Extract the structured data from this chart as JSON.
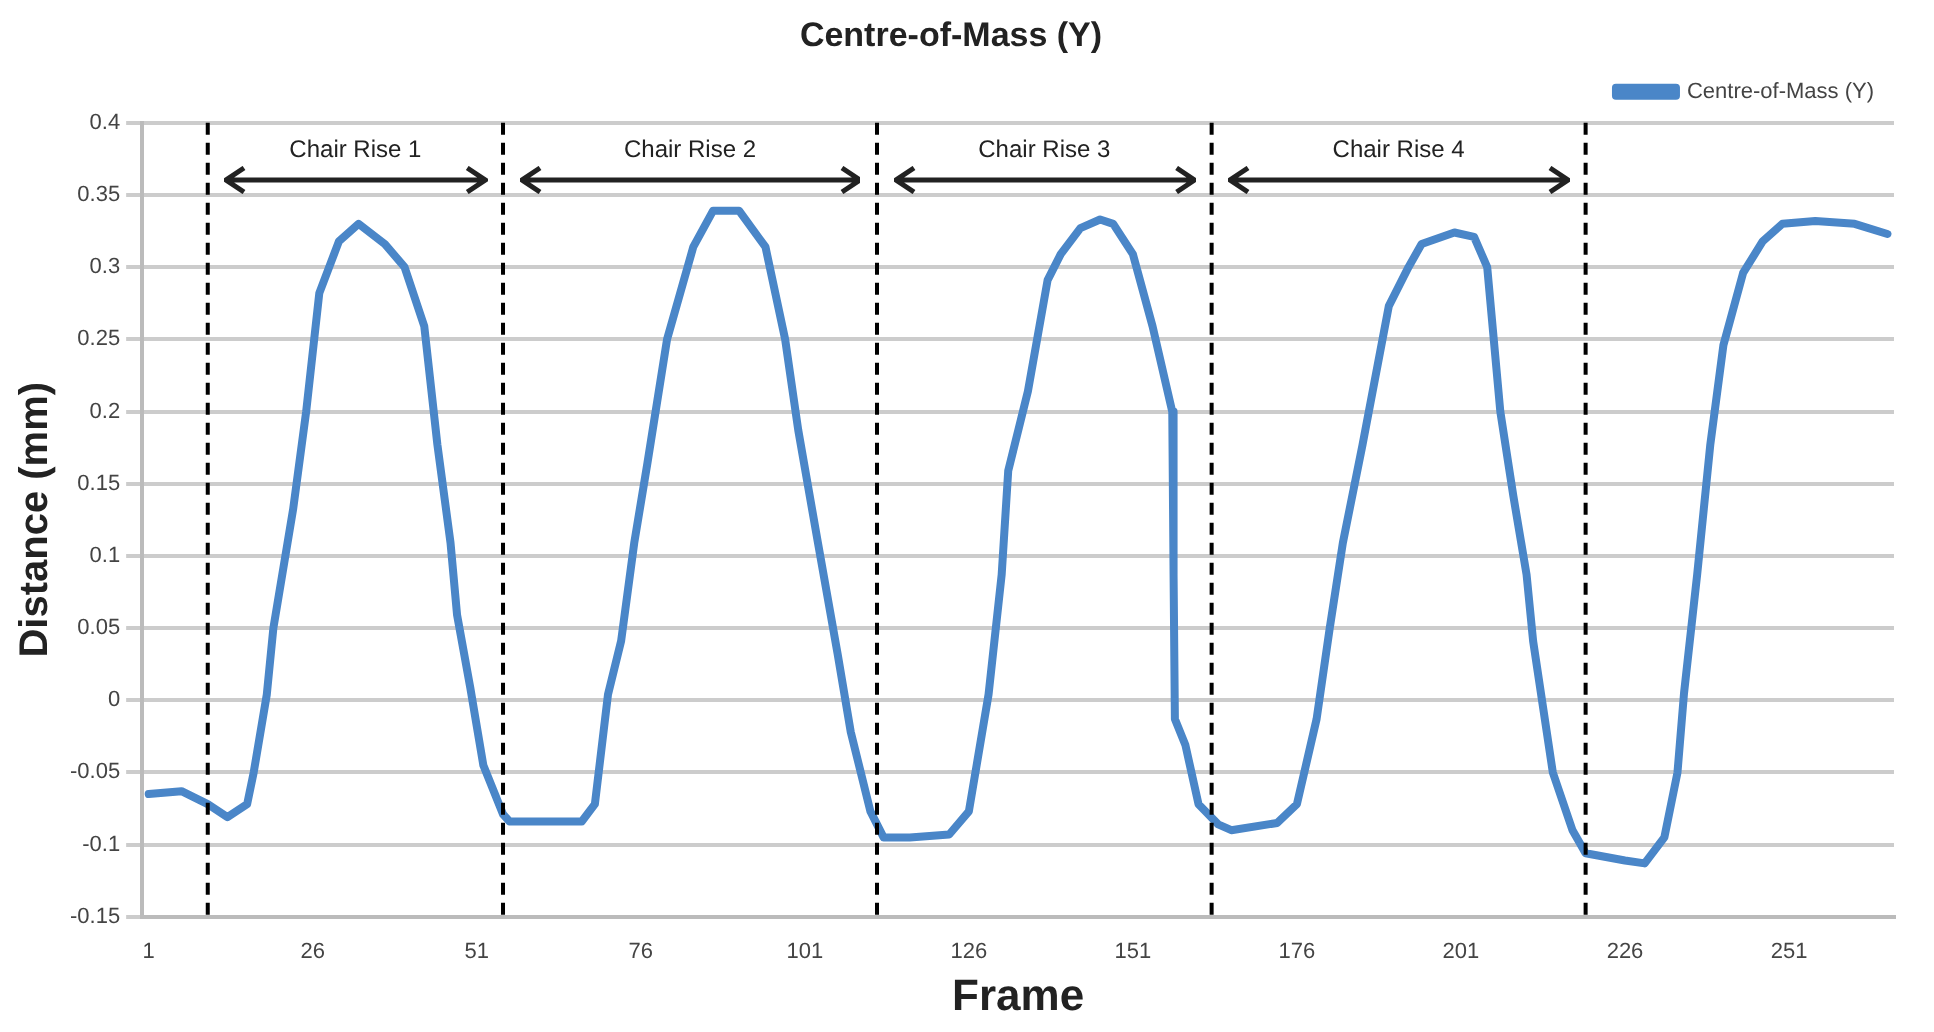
{
  "chart_data": {
    "type": "line",
    "title": "Centre-of-Mass (Y)",
    "xlabel": "Frame",
    "ylabel": "Distance (mm)",
    "xlim": [
      0,
      267
    ],
    "xticks": [
      1,
      26,
      51,
      76,
      101,
      126,
      151,
      176,
      201,
      226,
      251
    ],
    "ylim": [
      -0.15,
      0.4
    ],
    "yticks": [
      -0.15,
      -0.1,
      -0.05,
      0,
      0.05,
      0.1,
      0.15,
      0.2,
      0.25,
      0.3,
      0.35,
      0.4
    ],
    "grid": "y",
    "legend": "top right",
    "marker": "none",
    "line_style": "solid",
    "series": [
      {
        "name": "Centre-of-Mass (Y)",
        "color": "#4a86c8",
        "x": [
          1,
          6,
          10,
          13,
          16,
          17,
          19,
          20,
          23,
          25,
          27,
          30,
          33,
          37,
          40,
          43,
          45,
          47,
          48,
          50,
          52,
          55,
          56,
          67,
          69,
          71,
          73,
          75,
          77,
          80,
          84,
          87,
          91,
          95,
          98,
          100,
          103,
          106,
          108,
          111,
          113,
          117,
          123,
          126,
          129,
          131,
          132,
          135,
          138,
          140,
          143,
          146,
          148,
          151,
          154,
          157,
          157.2,
          157.4,
          159,
          161,
          164,
          166,
          173,
          176,
          179,
          181,
          183,
          186,
          190,
          193,
          195,
          200,
          203,
          205,
          207,
          209,
          211,
          212,
          215,
          218,
          220,
          226,
          229,
          232,
          234,
          235,
          237,
          239,
          241,
          244,
          247,
          250,
          255,
          261,
          266
        ],
        "values": [
          -0.065,
          -0.063,
          -0.072,
          -0.081,
          -0.072,
          -0.05,
          0.004,
          0.05,
          0.132,
          0.2,
          0.282,
          0.318,
          0.33,
          0.316,
          0.3,
          0.259,
          0.177,
          0.109,
          0.059,
          0.009,
          -0.045,
          -0.079,
          -0.084,
          -0.084,
          -0.072,
          0.004,
          0.041,
          0.109,
          0.164,
          0.25,
          0.314,
          0.339,
          0.339,
          0.314,
          0.25,
          0.187,
          0.109,
          0.032,
          -0.022,
          -0.077,
          -0.095,
          -0.095,
          -0.093,
          -0.077,
          0.004,
          0.087,
          0.159,
          0.214,
          0.291,
          0.309,
          0.327,
          0.333,
          0.33,
          0.309,
          0.259,
          0.2,
          0.087,
          -0.013,
          -0.031,
          -0.072,
          -0.086,
          -0.09,
          -0.085,
          -0.072,
          -0.013,
          0.05,
          0.109,
          0.177,
          0.273,
          0.3,
          0.316,
          0.324,
          0.321,
          0.3,
          0.2,
          0.141,
          0.087,
          0.041,
          -0.05,
          -0.09,
          -0.106,
          -0.111,
          -0.113,
          -0.095,
          -0.05,
          0.005,
          0.087,
          0.177,
          0.246,
          0.296,
          0.318,
          0.33,
          0.332,
          0.33,
          0.323
        ]
      }
    ],
    "ref_lines": [
      {
        "axis": "x",
        "value": 10,
        "color": "#000000",
        "line_style": "dashed"
      },
      {
        "axis": "x",
        "value": 55,
        "color": "#000000",
        "line_style": "dashed"
      },
      {
        "axis": "x",
        "value": 112,
        "color": "#000000",
        "line_style": "dashed"
      },
      {
        "axis": "x",
        "value": 163,
        "color": "#000000",
        "line_style": "dashed"
      },
      {
        "axis": "x",
        "value": 220,
        "color": "#000000",
        "line_style": "dashed"
      }
    ],
    "annotations": [
      "Chair Rise 1",
      "Chair Rise 2",
      "Chair Rise 3",
      "Chair Rise 4"
    ]
  }
}
